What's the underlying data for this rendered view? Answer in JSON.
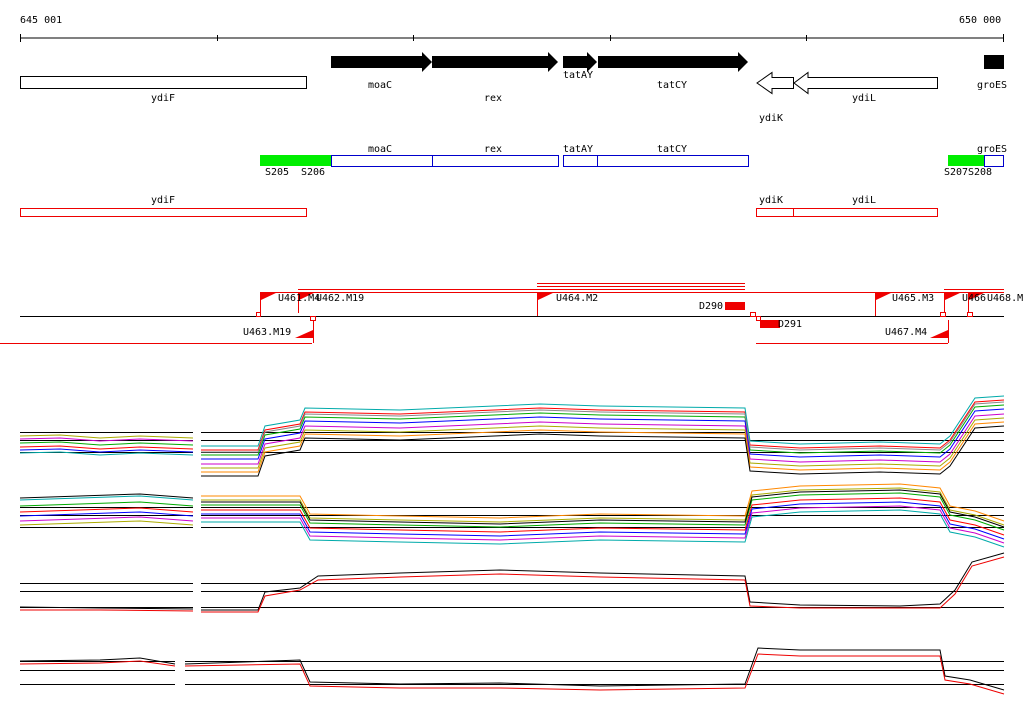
{
  "ruler": {
    "start": "645 001",
    "end": "650 000"
  },
  "genes": {
    "ydiF": "ydiF",
    "moaC": "moaC",
    "rex": "rex",
    "tatAY": "tatAY",
    "tatCY": "tatCY",
    "ydiK": "ydiK",
    "ydiL": "ydiL",
    "groES": "groES"
  },
  "segments": {
    "moaC": "moaC",
    "rex": "rex",
    "tatAY": "tatAY",
    "tatCY": "tatCY",
    "groES": "groES",
    "s205": "S205",
    "s206": "S206",
    "s207": "S207",
    "s208": "S208"
  },
  "red_genes": {
    "ydiF": "ydiF",
    "ydiK": "ydiK",
    "ydiL": "ydiL"
  },
  "features": {
    "u461": "U461.M4",
    "u462": "U462.M19",
    "u464": "U464.M2",
    "d290": "D290",
    "d291": "D291",
    "u465": "U465.M3",
    "u466": "U466",
    "u468": "U468.M",
    "u463": "U463.M19",
    "u467": "U467.M4"
  }
}
